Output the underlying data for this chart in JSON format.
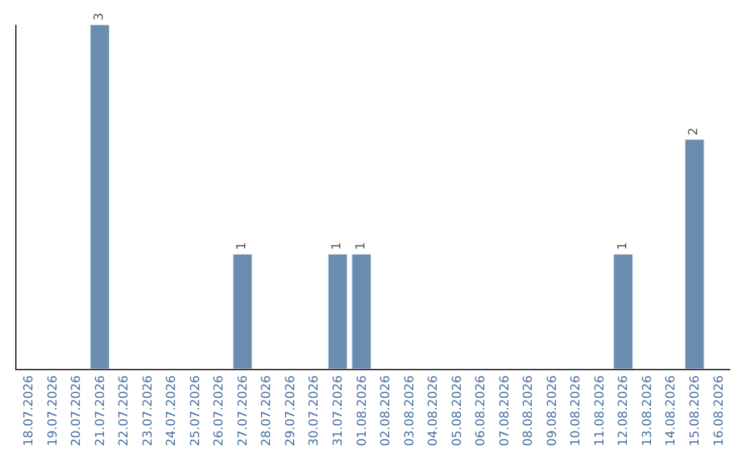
{
  "chart_data": {
    "type": "bar",
    "categories": [
      "18.07.2026",
      "19.07.2026",
      "20.07.2026",
      "21.07.2026",
      "22.07.2026",
      "23.07.2026",
      "24.07.2026",
      "25.07.2026",
      "26.07.2026",
      "27.07.2026",
      "28.07.2026",
      "29.07.2026",
      "30.07.2026",
      "31.07.2026",
      "01.08.2026",
      "02.08.2026",
      "03.08.2026",
      "04.08.2026",
      "05.08.2026",
      "06.08.2026",
      "07.08.2026",
      "08.08.2026",
      "09.08.2026",
      "10.08.2026",
      "11.08.2026",
      "12.08.2026",
      "13.08.2026",
      "14.08.2026",
      "15.08.2026",
      "16.08.2026"
    ],
    "values": [
      null,
      null,
      null,
      3,
      null,
      null,
      null,
      null,
      null,
      1,
      null,
      null,
      null,
      1,
      1,
      null,
      null,
      null,
      null,
      null,
      null,
      null,
      null,
      null,
      null,
      1,
      null,
      null,
      2,
      null
    ],
    "color": "#6a8caf",
    "ylim": [
      0,
      3
    ],
    "tick_labels": "x",
    "data_labels": true
  }
}
